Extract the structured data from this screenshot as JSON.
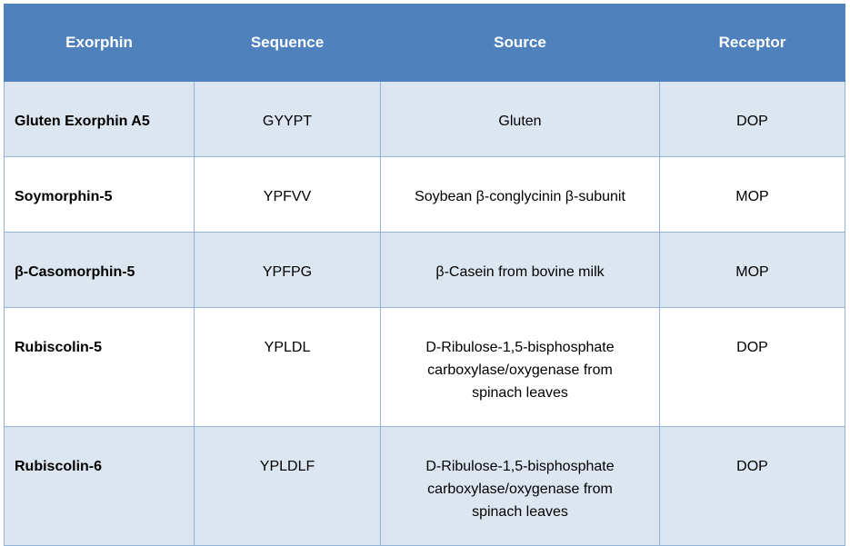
{
  "table": {
    "columns": [
      "Exorphin",
      "Sequence",
      "Source",
      "Receptor"
    ],
    "rows": [
      [
        "Gluten Exorphin A5",
        "GYYPT",
        "Gluten",
        "DOP"
      ],
      [
        "Soymorphin-5",
        "YPFVV",
        "Soybean β-conglycinin β-subunit",
        "MOP"
      ],
      [
        "β-Casomorphin-5",
        "YPFPG",
        "β-Casein from bovine milk",
        "MOP"
      ],
      [
        "Rubiscolin-5",
        "YPLDL",
        "D-Ribulose-1,5-bisphosphate carboxylase/oxygenase from spinach leaves",
        "DOP"
      ],
      [
        "Rubiscolin-6",
        "YPLDLF",
        "D-Ribulose-1,5-bisphosphate carboxylase/oxygenase from spinach leaves",
        "DOP"
      ]
    ]
  }
}
